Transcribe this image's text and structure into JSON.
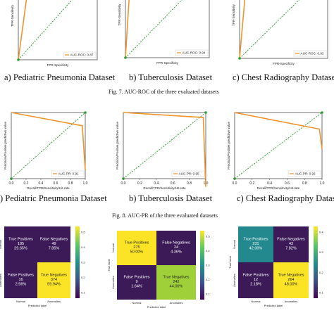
{
  "colors": {
    "curve": "#f0932a",
    "diagonal": "#2ca02c",
    "endpoint": "#2ca02c",
    "cm_purple": "#3b1a57",
    "cm_yellow": "#fbe426",
    "cm_green": "#9fd03a",
    "cm_teal": "#23898e"
  },
  "roc_row": {
    "xlabel": "FPR-Specificity",
    "ylabel": "TPR-Sensitivity",
    "panels": [
      {
        "caption": "a) Pediatric Pneumonia Dataset",
        "legend": "AUC-ROC: 0.87"
      },
      {
        "caption": "b) Tuberculosis Dataset",
        "legend": "AUC-ROC: 0.94"
      },
      {
        "caption": "c) Chest Radiography Dataset",
        "legend": "AUC-ROC: 0.92"
      }
    ],
    "figure_caption": "Fig. 7.   AUC-ROC of the three evaluated datasets"
  },
  "pr_row": {
    "xlabel": "Recall/TPR/Sensitivity/Hit-rate",
    "ylabel": "Precision/Positive predictive value",
    "panels": [
      {
        "caption": ") Pediatric Pneumonia Dataset",
        "legend": "AUC-PR: 0.91"
      },
      {
        "caption": "b) Tuberculosis Dataset",
        "legend": "AUC-PR: 0.95"
      },
      {
        "caption": "c) Chest Radiography Datase",
        "legend": "AUC-PR: 0.92"
      }
    ],
    "figure_caption": "Fig. 8.   AUC-PR of the three evaluated datasets"
  },
  "cm_row": {
    "xlabel": "Predicted label",
    "ylabel": "True label",
    "tick_normal": "Normal",
    "tick_anomalies": "Anomalies",
    "panels": [
      {
        "cells": [
          {
            "label": "True Positives",
            "count": "185",
            "pct": "29.65%",
            "color": "#3b1a57",
            "text": "#ffffff"
          },
          {
            "label": "False Negatives",
            "count": "49",
            "pct": "7.85%",
            "color": "#3b1a57",
            "text": "#ffffff"
          },
          {
            "label": "False Positives",
            "count": "16",
            "pct": "2.56%",
            "color": "#3b1a57",
            "text": "#ffffff"
          },
          {
            "label": "True Negatives",
            "count": "374",
            "pct": "59.94%",
            "color": "#fbe426",
            "text": "#222222"
          }
        ],
        "colorbar_ticks": [
          "0.5",
          "0.4",
          "0.3",
          "0.2",
          "0.1"
        ]
      },
      {
        "cells": [
          {
            "label": "True Positives",
            "count": "275",
            "pct": "50.00%",
            "color": "#fbe426",
            "text": "#222222"
          },
          {
            "label": "False Negatives",
            "count": "24",
            "pct": "4.36%",
            "color": "#3b1a57",
            "text": "#ffffff"
          },
          {
            "label": "False Positives",
            "count": "9",
            "pct": "1.64%",
            "color": "#3b1a57",
            "text": "#ffffff"
          },
          {
            "label": "True Negatives",
            "count": "242",
            "pct": "44.00%",
            "color": "#9fd03a",
            "text": "#222222"
          }
        ],
        "colorbar_ticks": [
          "0.5",
          "0.4",
          "0.3",
          "0.2",
          "0.1"
        ]
      },
      {
        "cells": [
          {
            "label": "True Positives",
            "count": "231",
            "pct": "42.00%",
            "color": "#23898e",
            "text": "#ffffff"
          },
          {
            "label": "False Negatives",
            "count": "43",
            "pct": "7.82%",
            "color": "#3b1a57",
            "text": "#ffffff"
          },
          {
            "label": "False Positives",
            "count": "12",
            "pct": "2.18%",
            "color": "#3b1a57",
            "text": "#ffffff"
          },
          {
            "label": "True Negatives",
            "count": "264",
            "pct": "48.00%",
            "color": "#fbe426",
            "text": "#222222"
          }
        ],
        "colorbar_ticks": [
          "0.4",
          "0.3",
          "0.2",
          "0.1"
        ]
      }
    ]
  },
  "chart_data": [
    {
      "type": "line",
      "title": "",
      "xlabel": "FPR-Specificity",
      "ylabel": "TPR-Sensitivity",
      "xlim": [
        0,
        1
      ],
      "ylim": [
        0,
        1
      ],
      "series": [
        {
          "name": "AUC-ROC: 0.87",
          "x": [
            0,
            0.13,
            1
          ],
          "y": [
            0,
            0.87,
            1
          ]
        }
      ]
    },
    {
      "type": "line",
      "title": "",
      "xlabel": "FPR-Specificity",
      "ylabel": "TPR-Sensitivity",
      "xlim": [
        0,
        1
      ],
      "ylim": [
        0,
        1
      ],
      "series": [
        {
          "name": "AUC-ROC: 0.94",
          "x": [
            0,
            0.06,
            1
          ],
          "y": [
            0,
            0.94,
            1
          ]
        }
      ]
    },
    {
      "type": "line",
      "title": "",
      "xlabel": "FPR-Specificity",
      "ylabel": "TPR-Sensitivity",
      "xlim": [
        0,
        1
      ],
      "ylim": [
        0,
        1
      ],
      "series": [
        {
          "name": "AUC-ROC: 0.92",
          "x": [
            0,
            0.08,
            1
          ],
          "y": [
            0,
            0.92,
            1
          ]
        }
      ]
    },
    {
      "type": "line",
      "title": "",
      "xlabel": "Recall/TPR/Sensitivity/Hit-rate",
      "ylabel": "Precision/Positive predictive value",
      "xticks": [
        "0.0",
        "0.2",
        "0.4",
        "0.6",
        "0.8",
        "1.0"
      ],
      "xlim": [
        0,
        1
      ],
      "ylim": [
        0.6,
        1
      ],
      "series": [
        {
          "name": "AUC-PR: 0.91",
          "x": [
            0,
            0.96,
            1.0
          ],
          "y": [
            1.0,
            0.92,
            0.65
          ]
        }
      ]
    },
    {
      "type": "line",
      "title": "",
      "xlabel": "Recall/TPR/Sensitivity/Hit-rate",
      "ylabel": "Precision/Positive predictive value",
      "xticks": [
        "0.0",
        "0.2",
        "0.4",
        "0.6",
        "0.8",
        "1.0"
      ],
      "xlim": [
        0,
        1
      ],
      "ylim": [
        0.6,
        1
      ],
      "series": [
        {
          "name": "AUC-PR: 0.95",
          "x": [
            0,
            0.97,
            1.0
          ],
          "y": [
            1.0,
            0.97,
            0.55
          ]
        }
      ]
    },
    {
      "type": "line",
      "title": "",
      "xlabel": "Recall/TPR/Sensitivity/Hit-rate",
      "ylabel": "Precision/Positive predictive value",
      "xticks": [
        "0.0",
        "0.2",
        "0.4",
        "0.6",
        "0.8",
        "1.0"
      ],
      "xlim": [
        0,
        1
      ],
      "ylim": [
        0.6,
        1
      ],
      "series": [
        {
          "name": "AUC-PR: 0.92",
          "x": [
            0,
            0.97,
            1.0
          ],
          "y": [
            1.0,
            0.9,
            0.78
          ]
        }
      ]
    },
    {
      "type": "heatmap",
      "title": "",
      "xlabel": "Predicted label",
      "ylabel": "True label",
      "categories": [
        "Normal",
        "Anomalies"
      ],
      "values": [
        [
          185,
          49
        ],
        [
          16,
          374
        ]
      ],
      "percent": [
        [
          29.65,
          7.85
        ],
        [
          2.56,
          59.94
        ]
      ]
    },
    {
      "type": "heatmap",
      "title": "",
      "xlabel": "Predicted label",
      "ylabel": "True label",
      "categories": [
        "Normal",
        "Anomalies"
      ],
      "values": [
        [
          275,
          24
        ],
        [
          9,
          242
        ]
      ],
      "percent": [
        [
          50.0,
          4.36
        ],
        [
          1.64,
          44.0
        ]
      ]
    },
    {
      "type": "heatmap",
      "title": "",
      "xlabel": "Predicted label",
      "ylabel": "True label",
      "categories": [
        "Normal",
        "Anomalies"
      ],
      "values": [
        [
          231,
          43
        ],
        [
          12,
          264
        ]
      ],
      "percent": [
        [
          42.0,
          7.82
        ],
        [
          2.18,
          48.0
        ]
      ]
    }
  ]
}
